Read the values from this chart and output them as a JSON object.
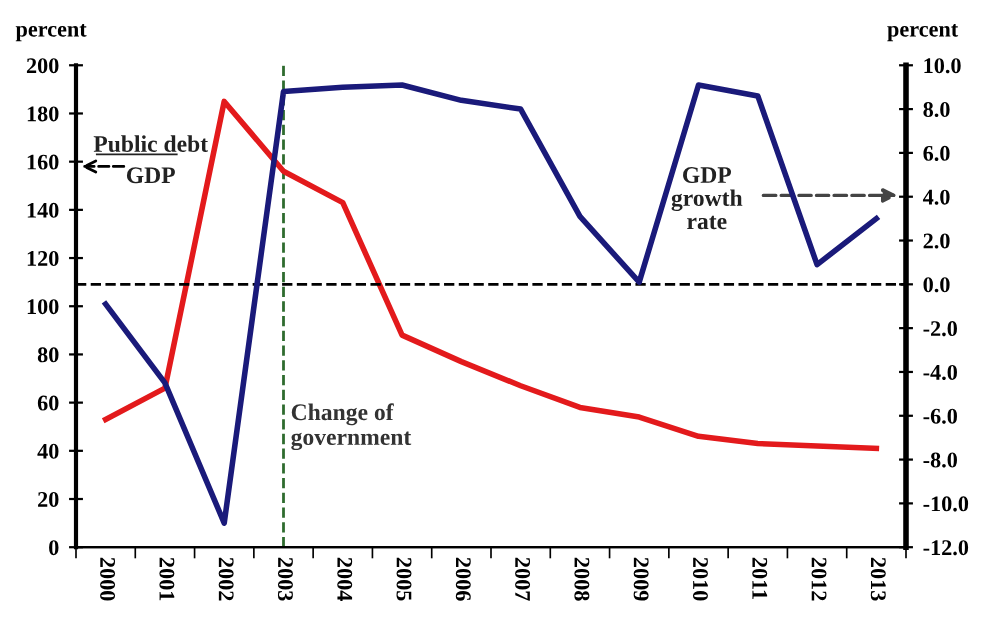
{
  "chart_data": {
    "type": "line",
    "categories": [
      "2000",
      "2001",
      "2002",
      "2003",
      "2004",
      "2005",
      "2006",
      "2007",
      "2008",
      "2009",
      "2010",
      "2011",
      "2012",
      "2013"
    ],
    "series": [
      {
        "color": "#e31a1c",
        "values": [
          53,
          66,
          185,
          156,
          143,
          88,
          77,
          67,
          58,
          54,
          46,
          43,
          42,
          41
        ]
      },
      {
        "color": "#1a1a7a",
        "axis": "y2",
        "values": [
          -0.9,
          -4.5,
          -10.9,
          8.8,
          9.0,
          9.1,
          8.4,
          8.0,
          3.1,
          0.1,
          9.1,
          8.6,
          0.9,
          3.0
        ]
      }
    ],
    "ylabel": "percent",
    "y2label": "percent",
    "ylim": [
      0,
      200
    ],
    "yticks": [
      0,
      20,
      40,
      60,
      80,
      100,
      120,
      140,
      160,
      180,
      200
    ],
    "y2lim": [
      -12.0,
      10.0
    ],
    "y2ticks": [
      {
        "value": -12,
        "label": "-12.0"
      },
      {
        "value": -10,
        "label": "-10.0"
      },
      {
        "value": -8,
        "label": "-8.0"
      },
      {
        "value": -6,
        "label": "-6.0"
      },
      {
        "value": -4,
        "label": "-4.0"
      },
      {
        "value": -2,
        "label": "-2.0"
      },
      {
        "value": 0,
        "label": "0.0"
      },
      {
        "value": 2,
        "label": "2.0"
      },
      {
        "value": 4,
        "label": "4.0"
      },
      {
        "value": 6,
        "label": "6.0"
      },
      {
        "value": 8,
        "label": "8.0"
      },
      {
        "value": 10,
        "label": "10.0"
      }
    ],
    "ref_lines": [
      {
        "axis": "x",
        "value": "2003",
        "label": "Change of\ngovernment",
        "color": "#2e6b2e",
        "line_style": "dashed"
      },
      {
        "axis": "y2",
        "value": 0.0,
        "color": "#000000",
        "line_style": "dashed"
      }
    ],
    "annotations": [
      "Public debt\nGDP",
      "GDP\ngrowth\nrate"
    ],
    "grid": false,
    "legend": false,
    "marker": "none",
    "line_style": "solid"
  }
}
